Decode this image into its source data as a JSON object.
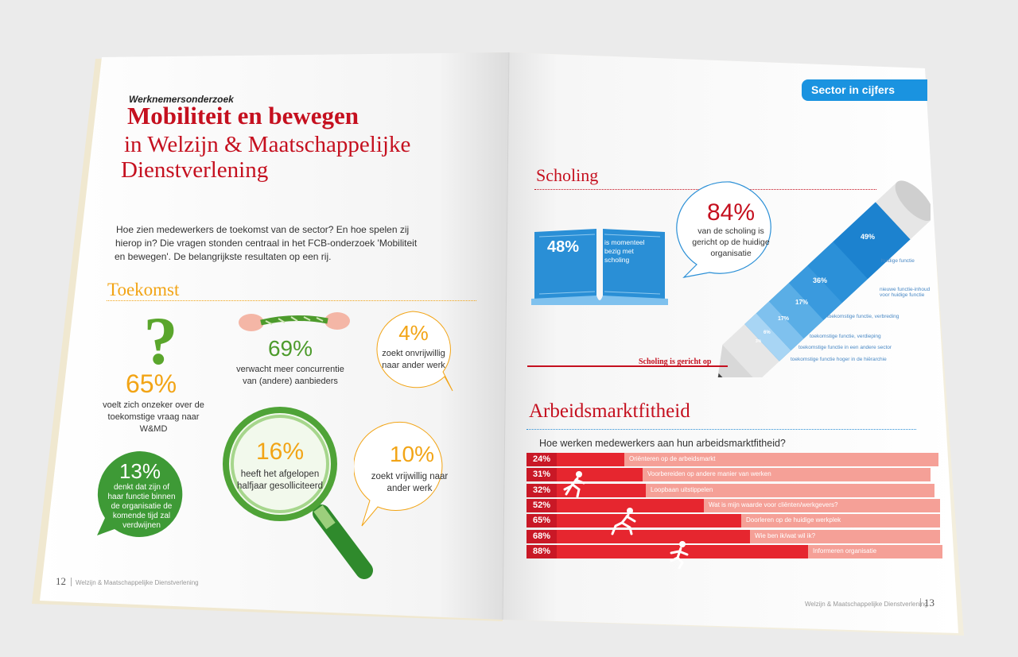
{
  "left": {
    "kicker": "Werknemersonderzoek",
    "title": "Mobiliteit en bewegen",
    "subtitle_line1": "in Welzijn & Maatschappelijke",
    "subtitle_line2": "Dienstverlening",
    "intro_line1": "Hoe zien medewerkers de toekomst van de sector? En hoe spelen zij",
    "intro_line2": "hierop in? Die vragen stonden centraal in het FCB-onderzoek 'Mobiliteit",
    "intro_line3": "en bewegen'. De belangrijkste resultaten op een rij.",
    "section": "Toekomst",
    "stat_question": {
      "pct": "65%",
      "l1": "voelt zich onzeker over de",
      "l2": "toekomstige vraag naar",
      "l3": "W&MD"
    },
    "stat_rope": {
      "pct": "69%",
      "l1": "verwacht meer concurrentie",
      "l2": "van (andere) aanbieders"
    },
    "stat_involuntary": {
      "pct": "4%",
      "l1": "zoekt onvrijwillig",
      "l2": "naar ander werk"
    },
    "stat_function": {
      "pct": "13%",
      "l1": "denkt dat zijn of",
      "l2": "haar functie binnen",
      "l3": "de organisatie de",
      "l4": "komende tijd zal",
      "l5": "verdwijnen"
    },
    "stat_applied": {
      "pct": "16%",
      "l1": "heeft het afgelopen",
      "l2": "halfjaar gesolliciteerd"
    },
    "stat_voluntary": {
      "pct": "10%",
      "l1": "zoekt vrijwillig naar",
      "l2": "ander werk"
    },
    "page_number": "12",
    "footer": "Welzijn & Maatschappelijke Dienstverlening"
  },
  "right": {
    "tab": "Sector in cijfers",
    "scholing_title": "Scholing",
    "book": {
      "pct": "48%",
      "l1": "is momenteel",
      "l2": "bezig met",
      "l3": "scholing"
    },
    "bubble": {
      "pct": "84%",
      "l1": "van de scholing is",
      "l2": "gericht op de huidige",
      "l3": "organisatie"
    },
    "pencil_caption": "Scholing is gericht op",
    "pencil": [
      {
        "pct": "49%",
        "label": "huidige functie"
      },
      {
        "pct": "36%",
        "label": "nieuwe functie-inhoud voor huidige functie"
      },
      {
        "pct": "17%",
        "label": "toekomstige functie, verbreding"
      },
      {
        "pct": "17%",
        "label": "toekomstige functie, verdieping"
      },
      {
        "pct": "6%",
        "label": "toekomstige functie in een andere sector"
      },
      {
        "pct": "3%",
        "label": "toekomstige functie hoger in de hiërarchie"
      }
    ],
    "arbeid_title": "Arbeidsmarktfitheid",
    "arbeid_question": "Hoe werken medewerkers aan hun arbeidsmarktfitheid?",
    "page_number": "13",
    "footer": "Welzijn & Maatschappelijke Dienstverlening"
  },
  "chart_data": {
    "type": "bar",
    "title": "Hoe werken medewerkers aan hun arbeidsmarktfitheid?",
    "categories": [
      "Oriënteren op de arbeidsmarkt",
      "Voorbereiden op andere manier van werken",
      "Loopbaan uitstippelen",
      "Wat is mijn waarde voor cliënten/werkgevers?",
      "Doorleren op de huidige werkplek",
      "Wie ben ik/wat wil ik?",
      "Informeren organisatie"
    ],
    "values": [
      24,
      31,
      32,
      52,
      65,
      68,
      88
    ],
    "labels": [
      "24%",
      "31%",
      "32%",
      "52%",
      "65%",
      "68%",
      "88%"
    ],
    "xlim": [
      0,
      100
    ],
    "colors": {
      "filled": "#e6262f",
      "remaining": "#f5a097",
      "pct_box": "#c91826"
    }
  },
  "colors": {
    "red": "#c5101f",
    "orange": "#f2a415",
    "green": "#4d9b2c",
    "blue": "#2a8fd6",
    "tab_blue": "#1a93e0"
  }
}
